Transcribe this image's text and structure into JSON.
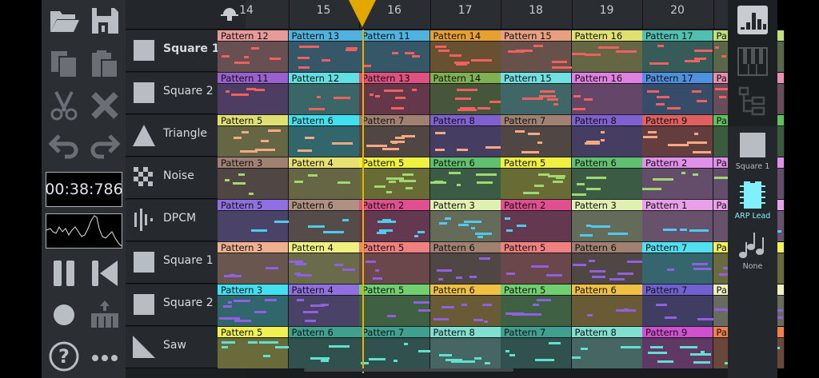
{
  "toolbar": {
    "timer": "00:38:786",
    "buttons": [
      "open-icon",
      "save-icon",
      "copy-icon",
      "paste-icon",
      "cut-icon",
      "delete-icon",
      "undo-icon",
      "redo-icon",
      "pause-icon",
      "rewind-icon",
      "record-icon",
      "piano-input-icon",
      "help-icon",
      "more-icon"
    ]
  },
  "channels": [
    {
      "name": "Square 1",
      "icon": "square",
      "bold": true
    },
    {
      "name": "Square 2",
      "icon": "square"
    },
    {
      "name": "Triangle",
      "icon": "triangle"
    },
    {
      "name": "Noise",
      "icon": "noise"
    },
    {
      "name": "DPCM",
      "icon": "dpcm"
    },
    {
      "name": "Square 1",
      "icon": "square"
    },
    {
      "name": "Square 2",
      "icon": "square"
    },
    {
      "name": "Saw",
      "icon": "saw"
    }
  ],
  "columns": [
    "14",
    "15",
    "16",
    "17",
    "18",
    "19",
    "20"
  ],
  "playhead_color": "#e3a800",
  "rows": [
    {
      "note_color": "#f06060",
      "patterns": [
        [
          "Pattern 12",
          "#e89a9a"
        ],
        [
          "Pattern 13",
          "#4fb3e0"
        ],
        [
          "Pattern 11",
          "#4fb3e0"
        ],
        [
          "Pattern 14",
          "#e8a030"
        ],
        [
          "Pattern 15",
          "#e8a080"
        ],
        [
          "Pattern 16",
          "#e0e070"
        ],
        [
          "Pattern 17",
          "#50c0b0"
        ],
        [
          "Pa",
          "#c0e080"
        ]
      ]
    },
    {
      "note_color": "#f06060",
      "patterns": [
        [
          "Pattern 11",
          "#9a60d0"
        ],
        [
          "Pattern 12",
          "#60e0e0"
        ],
        [
          "Pattern 13",
          "#e05080"
        ],
        [
          "Pattern 14",
          "#80b050"
        ],
        [
          "Pattern 15",
          "#70e0e0"
        ],
        [
          "Pattern 16",
          "#e080e0"
        ],
        [
          "Pattern 17",
          "#5090e0"
        ],
        [
          "Pa",
          "#e890b0"
        ]
      ]
    },
    {
      "note_color": "#f8a880",
      "patterns": [
        [
          "Pattern 5",
          "#e0e070"
        ],
        [
          "Pattern 6",
          "#40e0f0"
        ],
        [
          "Pattern 7",
          "#a08070"
        ],
        [
          "Pattern 8",
          "#8060d0"
        ],
        [
          "Pattern 7",
          "#a08070"
        ],
        [
          "Pattern 8",
          "#8060d0"
        ],
        [
          "Pattern 9",
          "#e06060"
        ],
        [
          "Pa",
          "#60c060"
        ]
      ]
    },
    {
      "note_color": "#a0d870",
      "patterns": [
        [
          "Pattern 3",
          "#a08070"
        ],
        [
          "Pattern 4",
          "#e8e070"
        ],
        [
          "Pattern 5",
          "#f0f040"
        ],
        [
          "Pattern 6",
          "#60c070"
        ],
        [
          "Pattern 5",
          "#f0f040"
        ],
        [
          "Pattern 6",
          "#60c070"
        ],
        [
          "Pattern 2",
          "#e090e8"
        ],
        [
          "Pa",
          "#e090e8"
        ]
      ]
    },
    {
      "note_color": "#50c8f0",
      "patterns": [
        [
          "Pattern 5",
          "#9070e0"
        ],
        [
          "Pattern 6",
          "#b09080"
        ],
        [
          "Pattern 2",
          "#e05090"
        ],
        [
          "Pattern 3",
          "#e0f0b0"
        ],
        [
          "Pattern 2",
          "#e05090"
        ],
        [
          "Pattern 3",
          "#e0f0b0"
        ],
        [
          "Pattern 1",
          "#e8a0e8"
        ],
        [
          "Pa",
          "#e8a0e8"
        ]
      ]
    },
    {
      "note_color": "#9060e0",
      "patterns": [
        [
          "Pattern 3",
          "#f0b090"
        ],
        [
          "Pattern 4",
          "#f0f080"
        ],
        [
          "Pattern 5",
          "#f08080"
        ],
        [
          "Pattern 6",
          "#a08070"
        ],
        [
          "Pattern 5",
          "#f08080"
        ],
        [
          "Pattern 6",
          "#a08070"
        ],
        [
          "Pattern 7",
          "#50e0f0"
        ],
        [
          "Pa",
          "#f0f060"
        ]
      ]
    },
    {
      "note_color": "#9060e0",
      "patterns": [
        [
          "Pattern 3",
          "#40e0f0"
        ],
        [
          "Pattern 4",
          "#9070e0"
        ],
        [
          "Pattern 5",
          "#70d070"
        ],
        [
          "Pattern 6",
          "#f0c040"
        ],
        [
          "Pattern 5",
          "#70d070"
        ],
        [
          "Pattern 6",
          "#f0c040"
        ],
        [
          "Pattern 7",
          "#7060d0"
        ],
        [
          "Pa",
          "#f0f0c0"
        ]
      ]
    },
    {
      "note_color": "#60e0d0",
      "patterns": [
        [
          "Pattern 5",
          "#f0f050"
        ],
        [
          "Pattern 6",
          "#40a090"
        ],
        [
          "Pattern 7",
          "#40a090"
        ],
        [
          "Pattern 8",
          "#80e0d0"
        ],
        [
          "Pattern 7",
          "#40a090"
        ],
        [
          "Pattern 8",
          "#80e0d0"
        ],
        [
          "Pattern 9",
          "#d050d0"
        ],
        [
          "Pa",
          "#f08050"
        ]
      ]
    }
  ],
  "right_panel": {
    "buttons": [
      "sequencer-icon",
      "piano-roll-icon",
      "project-explorer-icon"
    ],
    "channel": "Square 1",
    "instrument": "ARP Lead",
    "instrument_color": "#80f0ff",
    "arpeggio": "None"
  }
}
